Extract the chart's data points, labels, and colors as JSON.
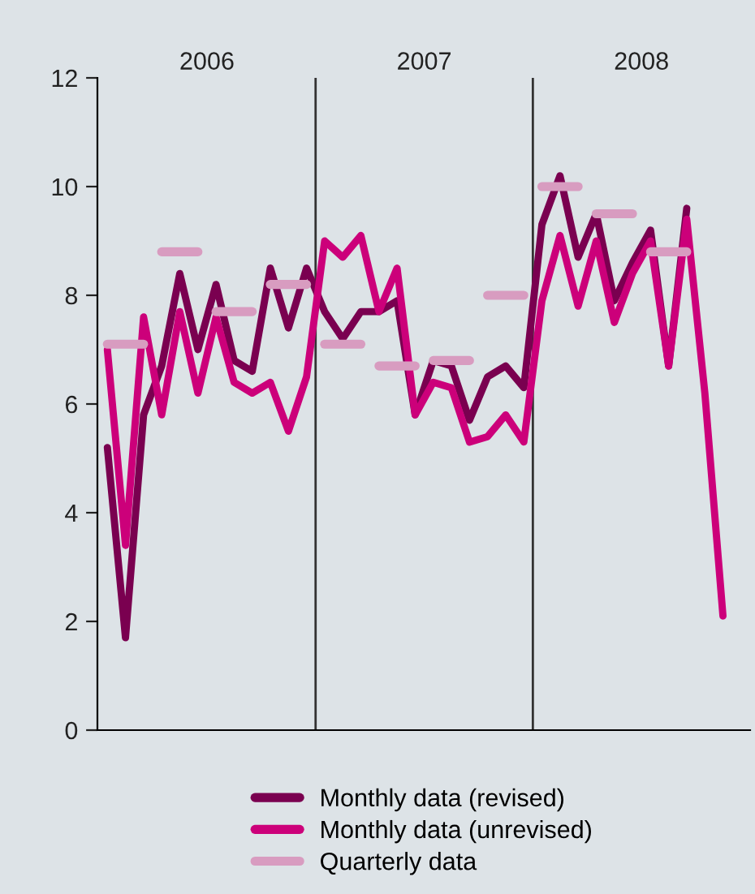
{
  "chart_data": {
    "type": "line",
    "categories": [
      null,
      null,
      null,
      null,
      null,
      null,
      null,
      null,
      null,
      null,
      null,
      null,
      null,
      null,
      null,
      null,
      null,
      null,
      null,
      null,
      null,
      null,
      null,
      null,
      null,
      null,
      null,
      null,
      null,
      null,
      null,
      null,
      null,
      null,
      null
    ],
    "series": [
      {
        "name": "Monthly data (revised)",
        "color": "#7a0050",
        "values": [
          5.2,
          1.7,
          5.8,
          6.7,
          8.4,
          7.0,
          8.2,
          6.8,
          6.6,
          8.5,
          7.4,
          8.5,
          7.7,
          7.2,
          7.7,
          7.7,
          7.9,
          5.8,
          6.8,
          6.7,
          5.7,
          6.5,
          6.7,
          6.3,
          9.3,
          10.2,
          8.7,
          9.5,
          7.9,
          8.6,
          9.2,
          6.7,
          9.6,
          null,
          null
        ]
      },
      {
        "name": "Monthly data (unrevised)",
        "color": "#cc007a",
        "values": [
          7.0,
          3.4,
          7.6,
          5.8,
          7.7,
          6.2,
          7.6,
          6.4,
          6.2,
          6.4,
          5.5,
          6.5,
          9.0,
          8.7,
          9.1,
          7.7,
          8.5,
          5.8,
          6.4,
          6.3,
          5.3,
          5.4,
          5.8,
          5.3,
          7.9,
          9.1,
          7.8,
          9.0,
          7.5,
          8.4,
          9.0,
          6.7,
          9.4,
          6.2,
          2.1
        ]
      },
      {
        "name": "Quarterly data",
        "color": "#d89cc0",
        "type": "step",
        "values": [
          7.1,
          7.1,
          7.1,
          8.8,
          8.8,
          8.8,
          7.7,
          7.7,
          7.7,
          8.2,
          8.2,
          8.2,
          7.1,
          7.1,
          7.1,
          6.7,
          6.7,
          6.7,
          6.8,
          6.8,
          6.8,
          8.0,
          8.0,
          8.0,
          10.0,
          10.0,
          10.0,
          9.5,
          9.5,
          9.5,
          8.8,
          8.8,
          8.8,
          null,
          null
        ]
      }
    ],
    "ylim": [
      0,
      12
    ],
    "yticks": [
      0,
      2,
      4,
      6,
      8,
      10,
      12
    ],
    "tick_labels": "y",
    "grid": false,
    "legend": "bottom",
    "annotations": [
      "2006",
      "2007",
      "2008"
    ]
  }
}
